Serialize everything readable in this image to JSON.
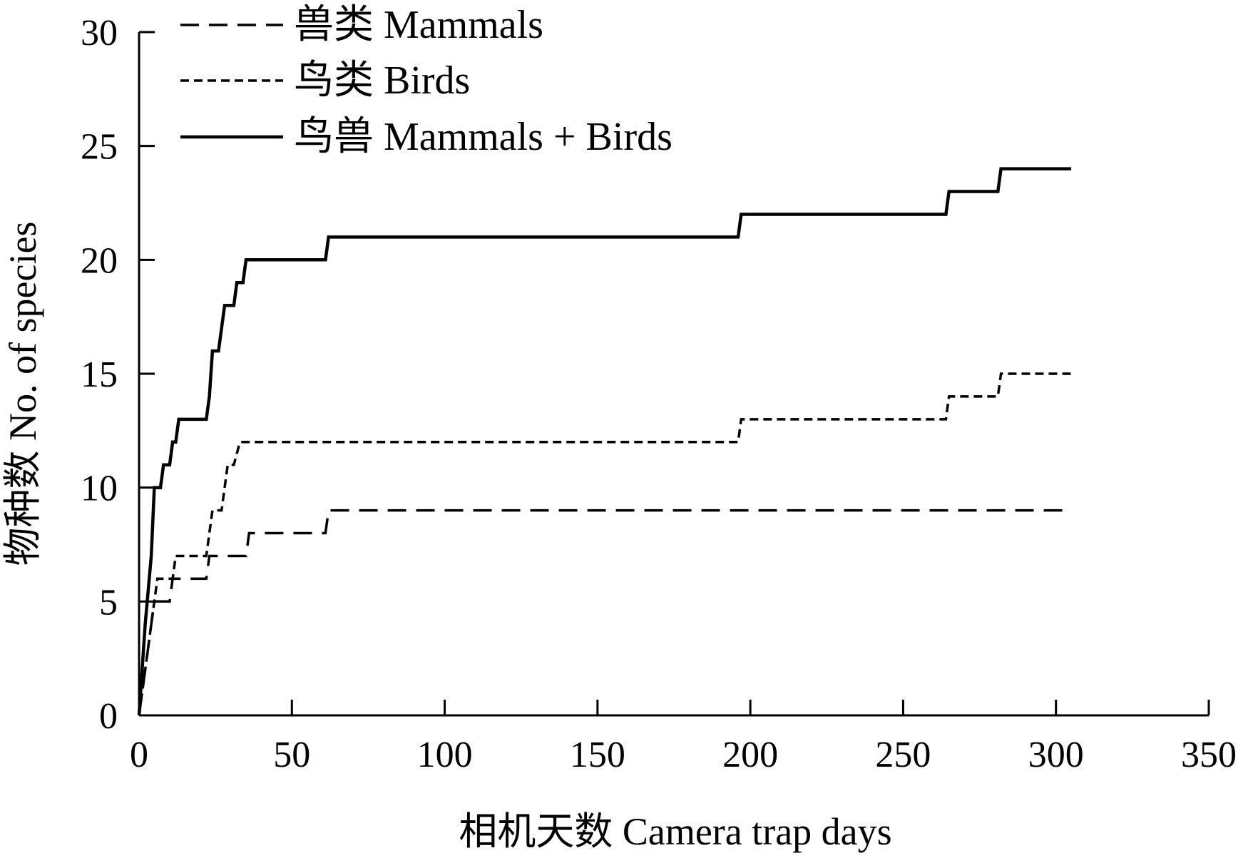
{
  "chart_data": {
    "type": "line",
    "xlabel": "相机天数 Camera trap days",
    "ylabel": "物种数 No. of species",
    "xlim": [
      0,
      350
    ],
    "ylim": [
      0,
      30
    ],
    "x_ticks": [
      0,
      50,
      100,
      150,
      200,
      250,
      300,
      350
    ],
    "y_ticks": [
      0,
      5,
      10,
      15,
      20,
      25,
      30
    ],
    "grid": false,
    "legend_position": "top-left",
    "series": [
      {
        "name": "兽类 Mammals",
        "line_style": "dashed",
        "color": "#000000",
        "points": [
          [
            0,
            0
          ],
          [
            1,
            1
          ],
          [
            2,
            2
          ],
          [
            3,
            3
          ],
          [
            4,
            4
          ],
          [
            5,
            5
          ],
          [
            10,
            5
          ],
          [
            11,
            6
          ],
          [
            22,
            6
          ],
          [
            23,
            7
          ],
          [
            35,
            7
          ],
          [
            36,
            8
          ],
          [
            61,
            8
          ],
          [
            62,
            9
          ],
          [
            305,
            9
          ]
        ]
      },
      {
        "name": "鸟类 Birds",
        "line_style": "dotted",
        "color": "#000000",
        "points": [
          [
            0,
            0
          ],
          [
            1,
            1
          ],
          [
            2,
            2
          ],
          [
            3,
            3
          ],
          [
            4,
            4
          ],
          [
            5,
            5
          ],
          [
            6,
            6
          ],
          [
            11,
            6
          ],
          [
            12,
            7
          ],
          [
            22,
            7
          ],
          [
            23,
            8
          ],
          [
            24,
            9
          ],
          [
            27,
            9
          ],
          [
            28,
            10
          ],
          [
            29,
            11
          ],
          [
            31,
            11
          ],
          [
            33,
            12
          ],
          [
            196,
            12
          ],
          [
            197,
            13
          ],
          [
            264,
            13
          ],
          [
            265,
            14
          ],
          [
            281,
            14
          ],
          [
            282,
            15
          ],
          [
            305,
            15
          ]
        ]
      },
      {
        "name": "鸟兽 Mammals + Birds",
        "line_style": "solid",
        "color": "#000000",
        "points": [
          [
            0,
            0
          ],
          [
            1,
            2
          ],
          [
            2,
            4
          ],
          [
            4,
            7
          ],
          [
            5,
            10
          ],
          [
            7,
            10
          ],
          [
            8,
            11
          ],
          [
            10,
            11
          ],
          [
            11,
            12
          ],
          [
            12,
            12
          ],
          [
            13,
            13
          ],
          [
            22,
            13
          ],
          [
            23,
            14
          ],
          [
            24,
            16
          ],
          [
            26,
            16
          ],
          [
            27,
            17
          ],
          [
            28,
            18
          ],
          [
            31,
            18
          ],
          [
            32,
            19
          ],
          [
            34,
            19
          ],
          [
            35,
            20
          ],
          [
            61,
            20
          ],
          [
            62,
            21
          ],
          [
            196,
            21
          ],
          [
            197,
            22
          ],
          [
            264,
            22
          ],
          [
            265,
            23
          ],
          [
            281,
            23
          ],
          [
            282,
            24
          ],
          [
            305,
            24
          ]
        ]
      }
    ]
  }
}
